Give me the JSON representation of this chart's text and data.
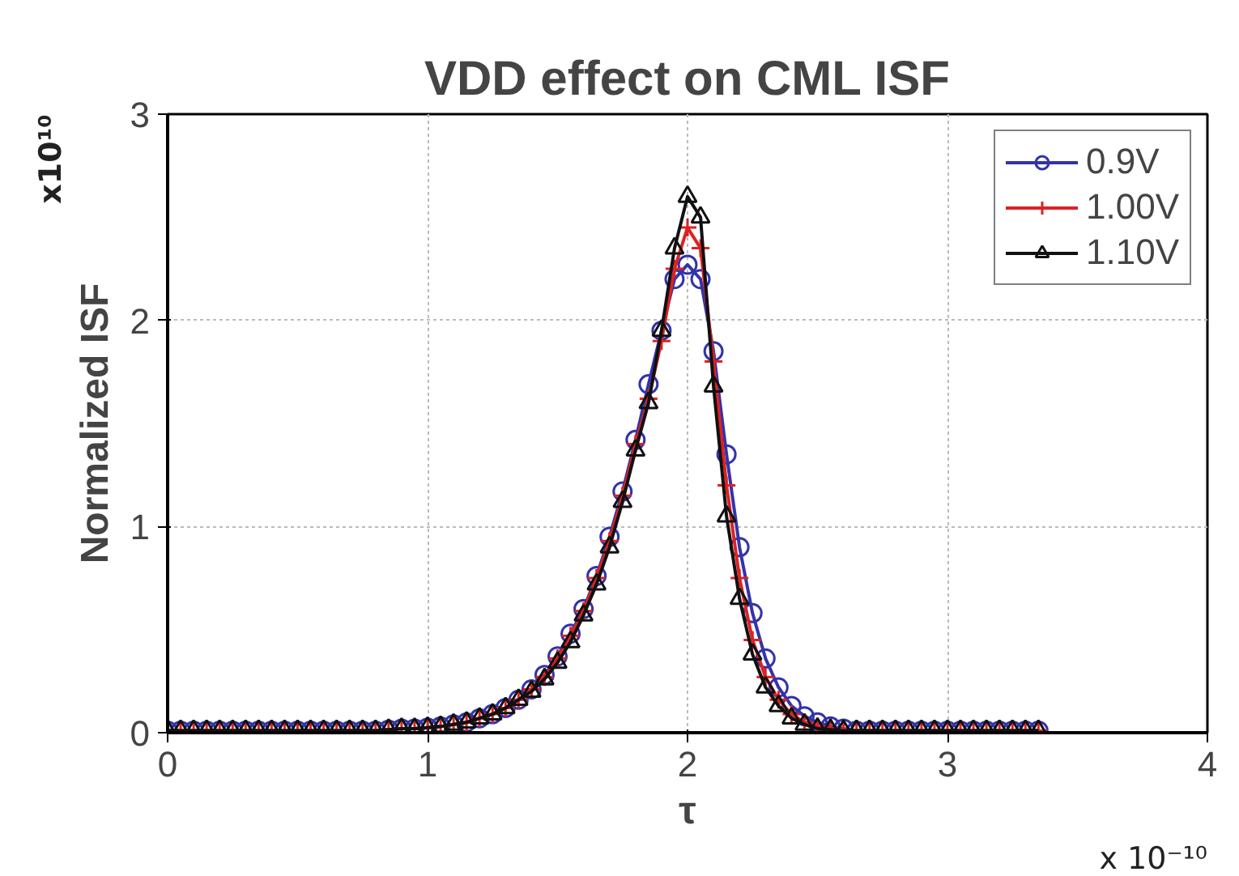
{
  "chart_data": {
    "type": "line",
    "title": "VDD effect on CML ISF",
    "xlabel": "τ",
    "ylabel": "Normalized ISF",
    "annotations": [
      "x10¹⁰",
      "x 10⁻¹⁰"
    ],
    "x": [
      0,
      0.05,
      0.1,
      0.15,
      0.2,
      0.25,
      0.3,
      0.35,
      0.4,
      0.45,
      0.5,
      0.55,
      0.6,
      0.65,
      0.7,
      0.75,
      0.8,
      0.85,
      0.9,
      0.95,
      1.0,
      1.05,
      1.1,
      1.15,
      1.2,
      1.25,
      1.3,
      1.35,
      1.4,
      1.45,
      1.5,
      1.55,
      1.6,
      1.65,
      1.7,
      1.75,
      1.8,
      1.85,
      1.9,
      1.95,
      2.0,
      2.05,
      2.1,
      2.15,
      2.2,
      2.25,
      2.3,
      2.35,
      2.4,
      2.45,
      2.5,
      2.55,
      2.6,
      2.65,
      2.7,
      2.75,
      2.8,
      2.85,
      2.9,
      2.95,
      3.0,
      3.05,
      3.1,
      3.15,
      3.2,
      3.25,
      3.3,
      3.35
    ],
    "series": [
      {
        "name": "0.9V",
        "color": "#3333aa",
        "marker": "circle",
        "values": [
          0.01,
          0.01,
          0.01,
          0.01,
          0.01,
          0.01,
          0.01,
          0.01,
          0.01,
          0.01,
          0.01,
          0.01,
          0.01,
          0.01,
          0.01,
          0.01,
          0.01,
          0.015,
          0.02,
          0.02,
          0.025,
          0.03,
          0.04,
          0.05,
          0.07,
          0.09,
          0.12,
          0.16,
          0.21,
          0.28,
          0.37,
          0.48,
          0.6,
          0.76,
          0.95,
          1.17,
          1.42,
          1.69,
          1.95,
          2.2,
          2.27,
          2.2,
          1.85,
          1.35,
          0.9,
          0.58,
          0.36,
          0.22,
          0.13,
          0.08,
          0.05,
          0.03,
          0.02,
          0.01,
          0.01,
          0.01,
          0.01,
          0.01,
          0.01,
          0.01,
          0.01,
          0.01,
          0.01,
          0.01,
          0.01,
          0.01,
          0.01,
          0.01
        ]
      },
      {
        "name": "1.00V",
        "color": "#dd2222",
        "marker": "cross",
        "values": [
          0.01,
          0.01,
          0.01,
          0.01,
          0.01,
          0.01,
          0.01,
          0.01,
          0.01,
          0.01,
          0.01,
          0.01,
          0.01,
          0.01,
          0.01,
          0.01,
          0.01,
          0.015,
          0.02,
          0.02,
          0.025,
          0.03,
          0.04,
          0.05,
          0.07,
          0.09,
          0.12,
          0.16,
          0.21,
          0.27,
          0.36,
          0.47,
          0.59,
          0.75,
          0.93,
          1.15,
          1.4,
          1.62,
          1.9,
          2.25,
          2.45,
          2.35,
          1.8,
          1.2,
          0.75,
          0.45,
          0.27,
          0.16,
          0.09,
          0.05,
          0.03,
          0.02,
          0.015,
          0.01,
          0.01,
          0.01,
          0.01,
          0.01,
          0.01,
          0.01,
          0.01,
          0.01,
          0.01,
          0.01,
          0.01,
          0.01,
          0.01,
          0.01
        ]
      },
      {
        "name": "1.10V",
        "color": "#111111",
        "marker": "triangle",
        "values": [
          0.01,
          0.01,
          0.01,
          0.01,
          0.01,
          0.01,
          0.01,
          0.01,
          0.01,
          0.01,
          0.01,
          0.01,
          0.01,
          0.01,
          0.01,
          0.01,
          0.01,
          0.015,
          0.02,
          0.02,
          0.025,
          0.03,
          0.04,
          0.05,
          0.07,
          0.09,
          0.12,
          0.16,
          0.2,
          0.26,
          0.34,
          0.44,
          0.57,
          0.72,
          0.9,
          1.12,
          1.37,
          1.6,
          1.95,
          2.35,
          2.6,
          2.5,
          1.68,
          1.05,
          0.65,
          0.38,
          0.22,
          0.13,
          0.07,
          0.04,
          0.02,
          0.015,
          0.01,
          0.01,
          0.01,
          0.01,
          0.01,
          0.01,
          0.01,
          0.01,
          0.01,
          0.01,
          0.01,
          0.01,
          0.01,
          0.01,
          0.01,
          0.01
        ]
      }
    ],
    "xlim": [
      0,
      4
    ],
    "xticks": [
      0,
      1,
      2,
      3,
      4
    ],
    "ylim": [
      0,
      3
    ],
    "yticks": [
      0,
      1,
      2,
      3
    ],
    "grid": true,
    "legend": "top right",
    "line_style": "solid"
  }
}
